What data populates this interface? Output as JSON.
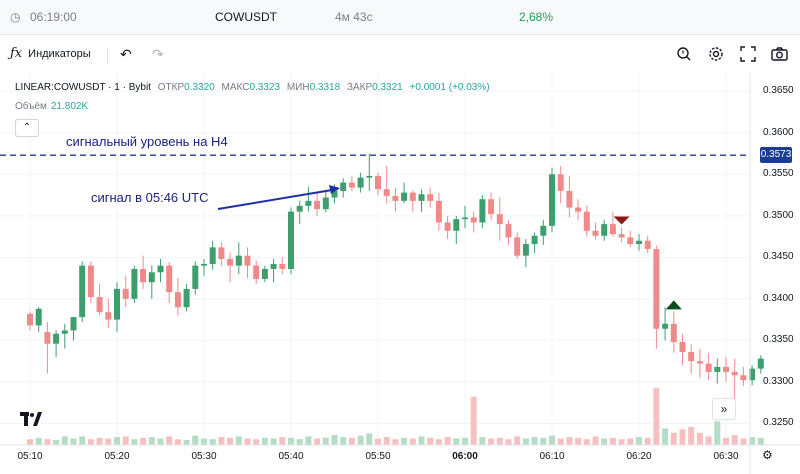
{
  "topbar": {
    "time": "06:19:00",
    "symbol": "COWUSDT",
    "countdown": "4м 43с",
    "change": "2,68%"
  },
  "toolbar": {
    "indicators_label": "Индикаторы"
  },
  "legend": {
    "title": "LINEAR:COWUSDT · 1 · Bybit",
    "open_label": "ОТКР",
    "open": "0.3320",
    "high_label": "МАКС",
    "high": "0.3323",
    "low_label": "МИН",
    "low": "0.3318",
    "close_label": "ЗАКР",
    "close": "0.3321",
    "change": "+0.0001 (+0.03%)",
    "volume_label": "Объём",
    "volume": "21.802K"
  },
  "annotations": {
    "signal_level_label": "сигнальный уровень на H4",
    "signal_level_price": "0.3573",
    "signal_arrow_label": "сигнал в 05:46 UTC"
  },
  "colors": {
    "up": "#3d9e6e",
    "down": "#ee8a8a",
    "vol_up": "#b5dcc6",
    "vol_down": "#f6c0c0",
    "level": "#1c3d8f"
  },
  "chart_data": {
    "type": "candlestick",
    "ylim": [
      0.3224,
      0.3672
    ],
    "y_ticks": [
      "0.3650",
      "0.3600",
      "0.3550",
      "0.3500",
      "0.3450",
      "0.3400",
      "0.3350",
      "0.3300",
      "0.3250"
    ],
    "x_ticks": [
      "05:10",
      "05:20",
      "05:30",
      "05:40",
      "05:50",
      "06:00",
      "06:10",
      "06:20",
      "06:30"
    ],
    "x_tick_minutes": [
      0,
      10,
      20,
      30,
      40,
      50,
      60,
      70,
      80
    ],
    "level": 0.3573,
    "candles": [
      [
        0.3382,
        0.3385,
        0.3362,
        0.3368
      ],
      [
        0.3368,
        0.339,
        0.336,
        0.3388
      ],
      [
        0.336,
        0.3372,
        0.331,
        0.3346
      ],
      [
        0.3346,
        0.3362,
        0.333,
        0.3358
      ],
      [
        0.3358,
        0.337,
        0.334,
        0.3362
      ],
      [
        0.3362,
        0.3378,
        0.335,
        0.3378
      ],
      [
        0.3378,
        0.3445,
        0.3372,
        0.344
      ],
      [
        0.344,
        0.3445,
        0.3395,
        0.3402
      ],
      [
        0.3402,
        0.3418,
        0.338,
        0.3384
      ],
      [
        0.3384,
        0.34,
        0.3365,
        0.3375
      ],
      [
        0.3375,
        0.342,
        0.336,
        0.3412
      ],
      [
        0.3412,
        0.3428,
        0.339,
        0.34
      ],
      [
        0.34,
        0.344,
        0.3395,
        0.3436
      ],
      [
        0.3436,
        0.3452,
        0.3412,
        0.342
      ],
      [
        0.342,
        0.344,
        0.34,
        0.3432
      ],
      [
        0.3432,
        0.3448,
        0.342,
        0.344
      ],
      [
        0.344,
        0.3444,
        0.3395,
        0.3408
      ],
      [
        0.3408,
        0.3425,
        0.338,
        0.339
      ],
      [
        0.339,
        0.3418,
        0.3385,
        0.3412
      ],
      [
        0.3412,
        0.3445,
        0.3405,
        0.344
      ],
      [
        0.344,
        0.3448,
        0.3428,
        0.3442
      ],
      [
        0.3442,
        0.347,
        0.3435,
        0.3462
      ],
      [
        0.3462,
        0.3468,
        0.344,
        0.3448
      ],
      [
        0.3448,
        0.3456,
        0.342,
        0.344
      ],
      [
        0.344,
        0.3468,
        0.343,
        0.3452
      ],
      [
        0.3452,
        0.3462,
        0.3425,
        0.344
      ],
      [
        0.344,
        0.3446,
        0.3418,
        0.3424
      ],
      [
        0.3424,
        0.344,
        0.342,
        0.3436
      ],
      [
        0.3436,
        0.3448,
        0.342,
        0.3442
      ],
      [
        0.3442,
        0.345,
        0.343,
        0.3436
      ],
      [
        0.3436,
        0.351,
        0.343,
        0.3505
      ],
      [
        0.3505,
        0.3518,
        0.349,
        0.3512
      ],
      [
        0.3512,
        0.3535,
        0.3505,
        0.3518
      ],
      [
        0.3518,
        0.3528,
        0.35,
        0.3508
      ],
      [
        0.3508,
        0.353,
        0.3504,
        0.3522
      ],
      [
        0.3522,
        0.3538,
        0.3515,
        0.353
      ],
      [
        0.353,
        0.3545,
        0.3522,
        0.354
      ],
      [
        0.354,
        0.3548,
        0.353,
        0.3534
      ],
      [
        0.3534,
        0.3552,
        0.3528,
        0.3546
      ],
      [
        0.3546,
        0.3575,
        0.353,
        0.3548
      ],
      [
        0.3548,
        0.3552,
        0.3525,
        0.3532
      ],
      [
        0.3532,
        0.356,
        0.3515,
        0.3524
      ],
      [
        0.3524,
        0.3534,
        0.3505,
        0.3518
      ],
      [
        0.3518,
        0.354,
        0.3515,
        0.3528
      ],
      [
        0.3528,
        0.353,
        0.3505,
        0.3518
      ],
      [
        0.3518,
        0.3532,
        0.3505,
        0.3526
      ],
      [
        0.3526,
        0.3534,
        0.351,
        0.3518
      ],
      [
        0.3518,
        0.3528,
        0.3482,
        0.3492
      ],
      [
        0.3492,
        0.35,
        0.3472,
        0.3482
      ],
      [
        0.3482,
        0.35,
        0.3466,
        0.3496
      ],
      [
        0.3496,
        0.3512,
        0.3485,
        0.3498
      ],
      [
        0.3498,
        0.3505,
        0.348,
        0.3492
      ],
      [
        0.3492,
        0.3525,
        0.3485,
        0.352
      ],
      [
        0.352,
        0.3528,
        0.3495,
        0.3502
      ],
      [
        0.3502,
        0.3522,
        0.347,
        0.349
      ],
      [
        0.349,
        0.3495,
        0.3465,
        0.3474
      ],
      [
        0.3474,
        0.348,
        0.3448,
        0.3452
      ],
      [
        0.3452,
        0.3472,
        0.3438,
        0.3466
      ],
      [
        0.3466,
        0.348,
        0.3455,
        0.3476
      ],
      [
        0.3476,
        0.3495,
        0.3465,
        0.3488
      ],
      [
        0.3488,
        0.3558,
        0.348,
        0.355
      ],
      [
        0.355,
        0.356,
        0.3515,
        0.353
      ],
      [
        0.353,
        0.3548,
        0.3498,
        0.351
      ],
      [
        0.351,
        0.352,
        0.3495,
        0.3505
      ],
      [
        0.3505,
        0.3512,
        0.3475,
        0.3482
      ],
      [
        0.3482,
        0.3492,
        0.3472,
        0.3476
      ],
      [
        0.3476,
        0.3495,
        0.347,
        0.349
      ],
      [
        0.349,
        0.3505,
        0.3475,
        0.3478
      ],
      [
        0.3478,
        0.3486,
        0.3468,
        0.3474
      ],
      [
        0.3474,
        0.3482,
        0.3462,
        0.3466
      ],
      [
        0.3466,
        0.3478,
        0.3458,
        0.347
      ],
      [
        0.347,
        0.3476,
        0.3455,
        0.346
      ],
      [
        0.346,
        0.3464,
        0.334,
        0.3364
      ],
      [
        0.3364,
        0.339,
        0.335,
        0.337
      ],
      [
        0.337,
        0.3385,
        0.3335,
        0.3348
      ],
      [
        0.3348,
        0.3358,
        0.332,
        0.3336
      ],
      [
        0.3336,
        0.3345,
        0.331,
        0.3325
      ],
      [
        0.3325,
        0.334,
        0.3305,
        0.3322
      ],
      [
        0.3322,
        0.3335,
        0.3302,
        0.3312
      ],
      [
        0.3312,
        0.3328,
        0.3298,
        0.3318
      ],
      [
        0.3318,
        0.333,
        0.33,
        0.3312
      ],
      [
        0.3312,
        0.3328,
        0.328,
        0.3308
      ],
      [
        0.3308,
        0.3318,
        0.3295,
        0.3302
      ],
      [
        0.3302,
        0.332,
        0.3296,
        0.3316
      ],
      [
        0.3316,
        0.3332,
        0.331,
        0.3328
      ]
    ],
    "volumes": [
      8,
      10,
      8,
      7,
      12,
      9,
      12,
      8,
      10,
      9,
      11,
      12,
      8,
      10,
      11,
      9,
      12,
      8,
      7,
      13,
      9,
      8,
      11,
      10,
      12,
      9,
      8,
      10,
      9,
      11,
      10,
      8,
      12,
      9,
      10,
      14,
      11,
      10,
      13,
      16,
      9,
      11,
      8,
      10,
      9,
      12,
      10,
      8,
      11,
      9,
      10,
      67,
      11,
      9,
      10,
      8,
      12,
      9,
      11,
      10,
      13,
      9,
      11,
      10,
      8,
      12,
      9,
      10,
      8,
      9,
      11,
      10,
      79,
      23,
      17,
      22,
      25,
      17,
      12,
      33,
      10,
      14,
      9,
      11,
      10
    ],
    "markers": [
      {
        "candle": 68,
        "kind": "sell"
      },
      {
        "candle": 74,
        "kind": "buy"
      }
    ],
    "grid": true
  }
}
